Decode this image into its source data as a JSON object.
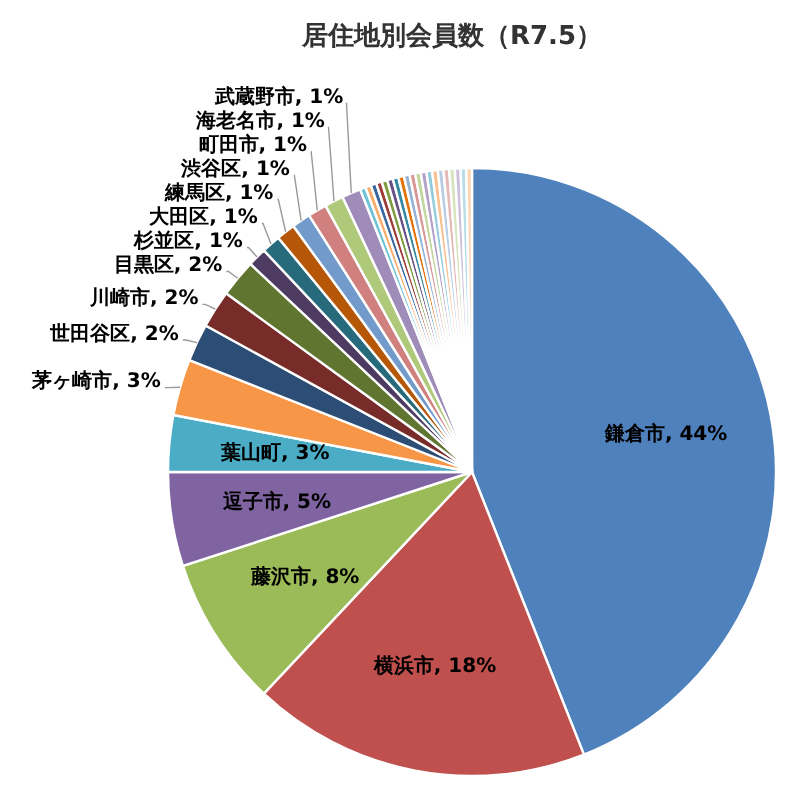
{
  "chart_data": {
    "type": "pie",
    "title": "居住地別会員数（R7.5）",
    "categories": [
      "鎌倉市",
      "横浜市",
      "藤沢市",
      "逗子市",
      "葉山町",
      "茅ヶ崎市",
      "世田谷区",
      "川崎市",
      "目黒区",
      "杉並区",
      "大田区",
      "練馬区",
      "渋谷区",
      "町田市",
      "海老名市",
      "武蔵野市",
      null,
      null,
      null,
      null,
      null,
      null,
      null,
      null,
      null,
      null,
      null,
      null,
      null,
      null,
      null,
      null,
      null,
      null,
      null,
      null
    ],
    "values": [
      44,
      18,
      8,
      5,
      3,
      3,
      2,
      2,
      2,
      1,
      1,
      1,
      1,
      1,
      1,
      1,
      0.3,
      0.3,
      0.3,
      0.3,
      0.3,
      0.3,
      0.3,
      0.3,
      0.3,
      0.3,
      0.3,
      0.3,
      0.3,
      0.3,
      0.3,
      0.3,
      0.3,
      0.3,
      0.3,
      0.3
    ],
    "value_labels": [
      "44%",
      "18%",
      "8%",
      "5%",
      "3%",
      "3%",
      "2%",
      "2%",
      "2%",
      "1%",
      "1%",
      "1%",
      "1%",
      "1%",
      "1%",
      "1%",
      null,
      null,
      null,
      null,
      null,
      null,
      null,
      null,
      null,
      null,
      null,
      null,
      null,
      null,
      null,
      null,
      null,
      null,
      null,
      null
    ],
    "colors": [
      "#4f81bd",
      "#c0504d",
      "#9bbb59",
      "#8064a2",
      "#4bacc6",
      "#f79646",
      "#2c4d75",
      "#772c2a",
      "#5f7530",
      "#4d3b62",
      "#276a7c",
      "#b65708",
      "#729aca",
      "#d0817f",
      "#afc97a",
      "#a08cb9",
      "#6fc3d8",
      "#f9ab6b",
      "#3a67a0",
      "#9f3b38",
      "#7f9d40",
      "#664f83",
      "#35889f",
      "#e3730b",
      "#95b3d7",
      "#d99694",
      "#c3d69b",
      "#b3a2c7",
      "#93cddd",
      "#fac090",
      "#b9cde5",
      "#e6b9b8",
      "#d7e4bd",
      "#ccc1da",
      "#b7dee8",
      "#fcd5b4"
    ],
    "data_labels": false
  }
}
